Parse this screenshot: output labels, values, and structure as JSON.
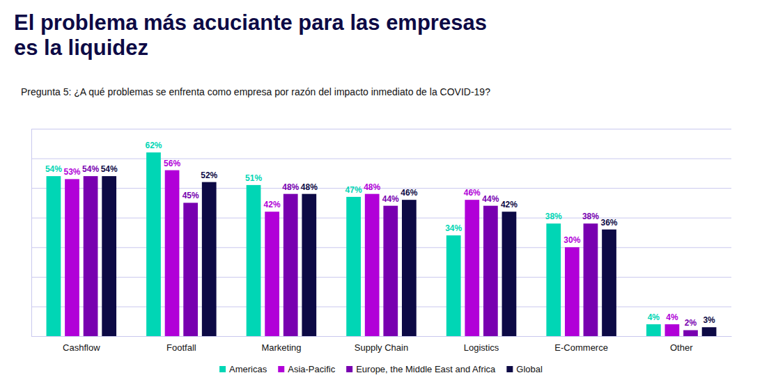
{
  "chart_data": {
    "type": "bar",
    "title": "El problema más acuciante para las empresas es la liquidez",
    "subtitle": "Pregunta 5: ¿A qué problemas se enfrenta como empresa por razón del impacto inmediato de la COVID-19?",
    "categories": [
      "Cashflow",
      "Footfall",
      "Marketing",
      "Supply Chain",
      "Logistics",
      "E-Commerce",
      "Other"
    ],
    "series": [
      {
        "name": "Americas",
        "color": "#00d6b5",
        "values": [
          54,
          62,
          51,
          47,
          34,
          38,
          4
        ],
        "value_labels": [
          "54%",
          "62%",
          "51%",
          "47%",
          "34%",
          "38%",
          "4%"
        ]
      },
      {
        "name": "Asia-Pacific",
        "color": "#b100d8",
        "values": [
          53,
          56,
          42,
          48,
          46,
          30,
          4
        ],
        "value_labels": [
          "53%",
          "56%",
          "42%",
          "48%",
          "46%",
          "30%",
          "4%"
        ]
      },
      {
        "name": "Europe, the Middle East and Africa",
        "color": "#7800b0",
        "values": [
          54,
          45,
          48,
          44,
          44,
          38,
          2
        ],
        "value_labels": [
          "54%",
          "45%",
          "48%",
          "44%",
          "44%",
          "38%",
          "2%"
        ]
      },
      {
        "name": "Global",
        "color": "#0d0a45",
        "values": [
          54,
          52,
          48,
          46,
          42,
          36,
          3
        ],
        "value_labels": [
          "54%",
          "52%",
          "48%",
          "46%",
          "42%",
          "36%",
          "3%"
        ]
      }
    ],
    "ylim": [
      0,
      70
    ],
    "yticks": [
      0,
      10,
      20,
      30,
      40,
      50,
      60,
      70
    ],
    "grid": true,
    "data_labels": true,
    "tick_labels": "x",
    "legend": "bottom"
  }
}
